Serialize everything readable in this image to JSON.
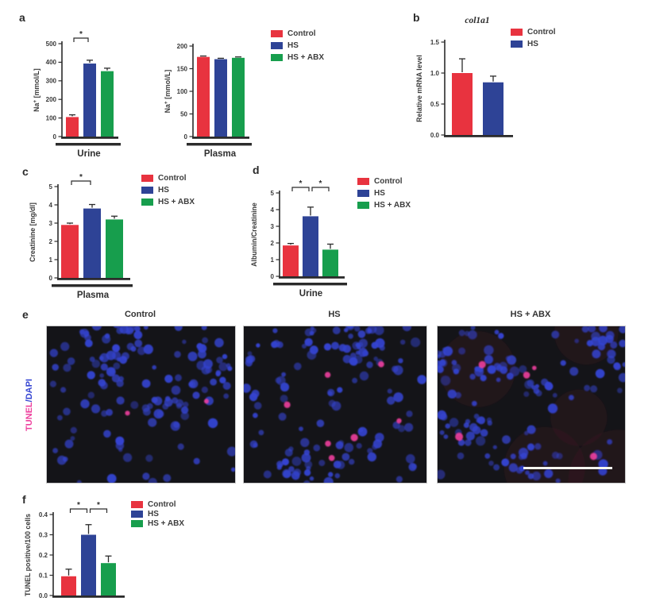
{
  "palette": {
    "Control": "#e8333f",
    "HS": "#2e4396",
    "HS + ABX": "#179e4d",
    "axis": "#2b2b2b",
    "text": "#3d3d3d",
    "tunel_pink": "#ee3f9d",
    "dapi_blue": "#3545d2",
    "micrograph_bg": "#141418",
    "scalebar": "#f5f5f0"
  },
  "groups": [
    "Control",
    "HS",
    "HS + ABX"
  ],
  "panels": {
    "a": {
      "letter": "a",
      "legend": [
        "Control",
        "HS",
        "HS + ABX"
      ]
    },
    "b": {
      "letter": "b",
      "title": "col1a1",
      "legend": [
        "Control",
        "HS"
      ]
    },
    "c": {
      "letter": "c",
      "legend": [
        "Control",
        "HS",
        "HS + ABX"
      ]
    },
    "d": {
      "letter": "d",
      "legend": [
        "Control",
        "HS",
        "HS + ABX"
      ]
    },
    "e": {
      "letter": "e",
      "row_label": {
        "tunel": "TUNEL",
        "dapi": "/DAPI"
      },
      "images": [
        {
          "caption": "Control",
          "tunel_cells": 2,
          "seed": 11,
          "haze": false,
          "scalebar": false
        },
        {
          "caption": "HS",
          "tunel_cells": 7,
          "seed": 29,
          "haze": false,
          "scalebar": false
        },
        {
          "caption": "HS + ABX",
          "tunel_cells": 5,
          "seed": 47,
          "haze": true,
          "scalebar": true
        }
      ]
    },
    "f": {
      "letter": "f",
      "legend": [
        "Control",
        "HS",
        "HS + ABX"
      ]
    }
  },
  "chart_data": [
    {
      "id": "a_urine",
      "type": "bar",
      "categories": [
        "Control",
        "HS",
        "HS + ABX"
      ],
      "values": [
        105,
        393,
        352
      ],
      "errors": [
        12,
        18,
        16
      ],
      "ylabel": "Na^+ [mmol/L]",
      "xlabel": "Urine",
      "ylim": [
        0,
        500
      ],
      "yticks": [
        0,
        100,
        200,
        300,
        400,
        500
      ],
      "ytick_labels": [
        "0",
        "100",
        "200",
        "300",
        "400",
        "500"
      ],
      "significance": [
        {
          "from": 0,
          "to": 1,
          "label": "*"
        }
      ]
    },
    {
      "id": "a_plasma",
      "type": "bar",
      "categories": [
        "Control",
        "HS",
        "HS + ABX"
      ],
      "values": [
        176,
        171,
        174
      ],
      "errors": [
        2,
        2,
        2
      ],
      "ylabel": "Na^+ [mmol/L]",
      "xlabel": "Plasma",
      "ylim": [
        0,
        200
      ],
      "yticks": [
        0,
        50,
        100,
        150,
        200
      ],
      "ytick_labels": [
        "0",
        "50",
        "100",
        "150",
        "200"
      ],
      "significance": []
    },
    {
      "id": "b_col1a1",
      "type": "bar",
      "title": "col1a1",
      "categories": [
        "Control",
        "HS"
      ],
      "values": [
        1.0,
        0.85
      ],
      "errors": [
        0.23,
        0.1
      ],
      "ylabel": "Relative mRNA level",
      "xlabel": "",
      "ylim": [
        0,
        1.5
      ],
      "yticks": [
        0,
        0.5,
        1.0,
        1.5
      ],
      "ytick_labels": [
        "0.0",
        "0.5",
        "1.0",
        "1.5"
      ],
      "significance": []
    },
    {
      "id": "c_creatinine",
      "type": "bar",
      "categories": [
        "Control",
        "HS",
        "HS + ABX"
      ],
      "values": [
        2.9,
        3.8,
        3.2
      ],
      "errors": [
        0.1,
        0.22,
        0.18
      ],
      "ylabel": "Creatinine [mg/dl]",
      "xlabel": "Plasma",
      "ylim": [
        0,
        5
      ],
      "yticks": [
        0,
        1,
        2,
        3,
        4,
        5
      ],
      "ytick_labels": [
        "0",
        "1",
        "2",
        "3",
        "4",
        "5"
      ],
      "significance": [
        {
          "from": 0,
          "to": 1,
          "label": "*"
        }
      ]
    },
    {
      "id": "d_albumin",
      "type": "bar",
      "categories": [
        "Control",
        "HS",
        "HS + ABX"
      ],
      "values": [
        1.85,
        3.6,
        1.6
      ],
      "errors": [
        0.12,
        0.55,
        0.33
      ],
      "ylabel": "Albumin/Creatinine",
      "xlabel": "Urine",
      "ylim": [
        0,
        5
      ],
      "yticks": [
        0,
        1,
        2,
        3,
        4,
        5
      ],
      "ytick_labels": [
        "0",
        "1",
        "2",
        "3",
        "4",
        "5"
      ],
      "significance": [
        {
          "from": 0,
          "to": 1,
          "label": "*"
        },
        {
          "from": 1,
          "to": 2,
          "label": "*"
        }
      ]
    },
    {
      "id": "f_tunel",
      "type": "bar",
      "categories": [
        "Control",
        "HS",
        "HS + ABX"
      ],
      "values": [
        0.095,
        0.3,
        0.16
      ],
      "errors": [
        0.035,
        0.05,
        0.035
      ],
      "ylabel": "TUNEL positive/100 cells",
      "xlabel": "",
      "ylim": [
        0,
        0.4
      ],
      "yticks": [
        0,
        0.1,
        0.2,
        0.3,
        0.4
      ],
      "ytick_labels": [
        "0.0",
        "0.1",
        "0.2",
        "0.3",
        "0.4"
      ],
      "significance": [
        {
          "from": 0,
          "to": 1,
          "label": "*"
        },
        {
          "from": 1,
          "to": 2,
          "label": "*"
        }
      ]
    }
  ]
}
